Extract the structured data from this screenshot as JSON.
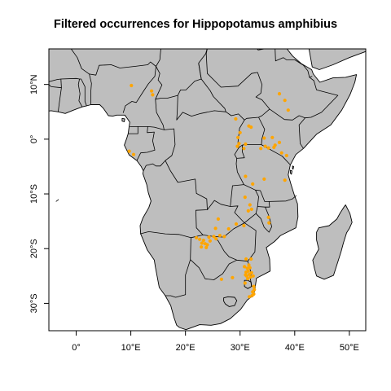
{
  "title": "Filtered occurrences for Hippopotamus amphibius",
  "colors": {
    "land": "#bebebe",
    "points": "#ffa500",
    "border": "#000000",
    "background": "#ffffff"
  },
  "chart_data": {
    "type": "scatter",
    "map_region": "Sub-Saharan Africa",
    "xlim": [
      -5,
      53
    ],
    "ylim": [
      -35,
      16.5
    ],
    "x_ticks": [
      {
        "value": 0,
        "label": "0°"
      },
      {
        "value": 10,
        "label": "10°E"
      },
      {
        "value": 20,
        "label": "20°E"
      },
      {
        "value": 30,
        "label": "30°E"
      },
      {
        "value": 40,
        "label": "40°E"
      },
      {
        "value": 50,
        "label": "50°E"
      }
    ],
    "y_ticks": [
      {
        "value": 10,
        "label": "10°N"
      },
      {
        "value": 0,
        "label": "0°"
      },
      {
        "value": -10,
        "label": "10°S"
      },
      {
        "value": -20,
        "label": "20°S"
      },
      {
        "value": -30,
        "label": "30°S"
      }
    ],
    "grid": false,
    "points": [
      {
        "lon": 10.1,
        "lat": 9.8
      },
      {
        "lon": 13.8,
        "lat": 8.8
      },
      {
        "lon": 14.0,
        "lat": 8.1
      },
      {
        "lon": 9.7,
        "lat": -2.2
      },
      {
        "lon": 10.5,
        "lat": -2.8
      },
      {
        "lon": 29.2,
        "lat": 3.7
      },
      {
        "lon": 31.6,
        "lat": 2.4
      },
      {
        "lon": 32.0,
        "lat": 2.2
      },
      {
        "lon": 30.0,
        "lat": 1.2
      },
      {
        "lon": 29.6,
        "lat": 0.3
      },
      {
        "lon": 29.8,
        "lat": -0.8
      },
      {
        "lon": 29.5,
        "lat": -1.3
      },
      {
        "lon": 30.7,
        "lat": -1.7
      },
      {
        "lon": 31.0,
        "lat": -0.9
      },
      {
        "lon": 38.2,
        "lat": 7.1
      },
      {
        "lon": 38.8,
        "lat": 5.3
      },
      {
        "lon": 37.2,
        "lat": 8.3
      },
      {
        "lon": 34.4,
        "lat": 0.2
      },
      {
        "lon": 35.9,
        "lat": 0.3
      },
      {
        "lon": 37.2,
        "lat": -0.6
      },
      {
        "lon": 33.8,
        "lat": -1.7
      },
      {
        "lon": 34.6,
        "lat": -1.3
      },
      {
        "lon": 35.2,
        "lat": -1.6
      },
      {
        "lon": 36.2,
        "lat": -1.5
      },
      {
        "lon": 36.4,
        "lat": -1.1
      },
      {
        "lon": 37.6,
        "lat": -2.5
      },
      {
        "lon": 38.5,
        "lat": -3.0
      },
      {
        "lon": 38.2,
        "lat": -7.5
      },
      {
        "lon": 34.4,
        "lat": -7.3
      },
      {
        "lon": 31.0,
        "lat": -6.8
      },
      {
        "lon": 32.3,
        "lat": -8.2
      },
      {
        "lon": 30.9,
        "lat": -10.6
      },
      {
        "lon": 31.8,
        "lat": -12.0
      },
      {
        "lon": 32.1,
        "lat": -12.8
      },
      {
        "lon": 31.5,
        "lat": -13.1
      },
      {
        "lon": 35.2,
        "lat": -14.3
      },
      {
        "lon": 35.3,
        "lat": -15.3
      },
      {
        "lon": 29.3,
        "lat": -15.5
      },
      {
        "lon": 30.7,
        "lat": -15.8
      },
      {
        "lon": 26.0,
        "lat": -14.6
      },
      {
        "lon": 25.5,
        "lat": -16.3
      },
      {
        "lon": 22.0,
        "lat": -18.0
      },
      {
        "lon": 22.6,
        "lat": -18.3
      },
      {
        "lon": 23.3,
        "lat": -18.5
      },
      {
        "lon": 23.0,
        "lat": -19.0
      },
      {
        "lon": 23.6,
        "lat": -19.1
      },
      {
        "lon": 24.0,
        "lat": -19.3
      },
      {
        "lon": 23.8,
        "lat": -19.8
      },
      {
        "lon": 22.9,
        "lat": -19.7
      },
      {
        "lon": 24.5,
        "lat": -18.6
      },
      {
        "lon": 25.2,
        "lat": -17.8
      },
      {
        "lon": 24.3,
        "lat": -17.9
      },
      {
        "lon": 25.6,
        "lat": -18.2
      },
      {
        "lon": 26.3,
        "lat": -17.6
      },
      {
        "lon": 27.1,
        "lat": -17.8
      },
      {
        "lon": 27.9,
        "lat": -16.4
      },
      {
        "lon": 31.1,
        "lat": -21.9
      },
      {
        "lon": 32.0,
        "lat": -21.9
      },
      {
        "lon": 31.6,
        "lat": -23.0
      },
      {
        "lon": 31.3,
        "lat": -23.6
      },
      {
        "lon": 31.8,
        "lat": -23.5
      },
      {
        "lon": 31.5,
        "lat": -24.1
      },
      {
        "lon": 31.1,
        "lat": -24.3
      },
      {
        "lon": 32.1,
        "lat": -24.4
      },
      {
        "lon": 31.7,
        "lat": -24.7
      },
      {
        "lon": 31.2,
        "lat": -25.0
      },
      {
        "lon": 31.9,
        "lat": -25.2
      },
      {
        "lon": 31.4,
        "lat": -25.5
      },
      {
        "lon": 32.4,
        "lat": -25.0
      },
      {
        "lon": 31.0,
        "lat": -24.8
      },
      {
        "lon": 30.8,
        "lat": -23.3
      },
      {
        "lon": 30.9,
        "lat": -26.3
      },
      {
        "lon": 32.5,
        "lat": -26.9
      },
      {
        "lon": 32.6,
        "lat": -27.5
      },
      {
        "lon": 32.3,
        "lat": -27.9
      },
      {
        "lon": 32.5,
        "lat": -28.3
      },
      {
        "lon": 32.2,
        "lat": -28.6
      },
      {
        "lon": 31.7,
        "lat": -28.8
      },
      {
        "lon": 26.6,
        "lat": -25.6
      },
      {
        "lon": 28.6,
        "lat": -25.3
      }
    ]
  }
}
